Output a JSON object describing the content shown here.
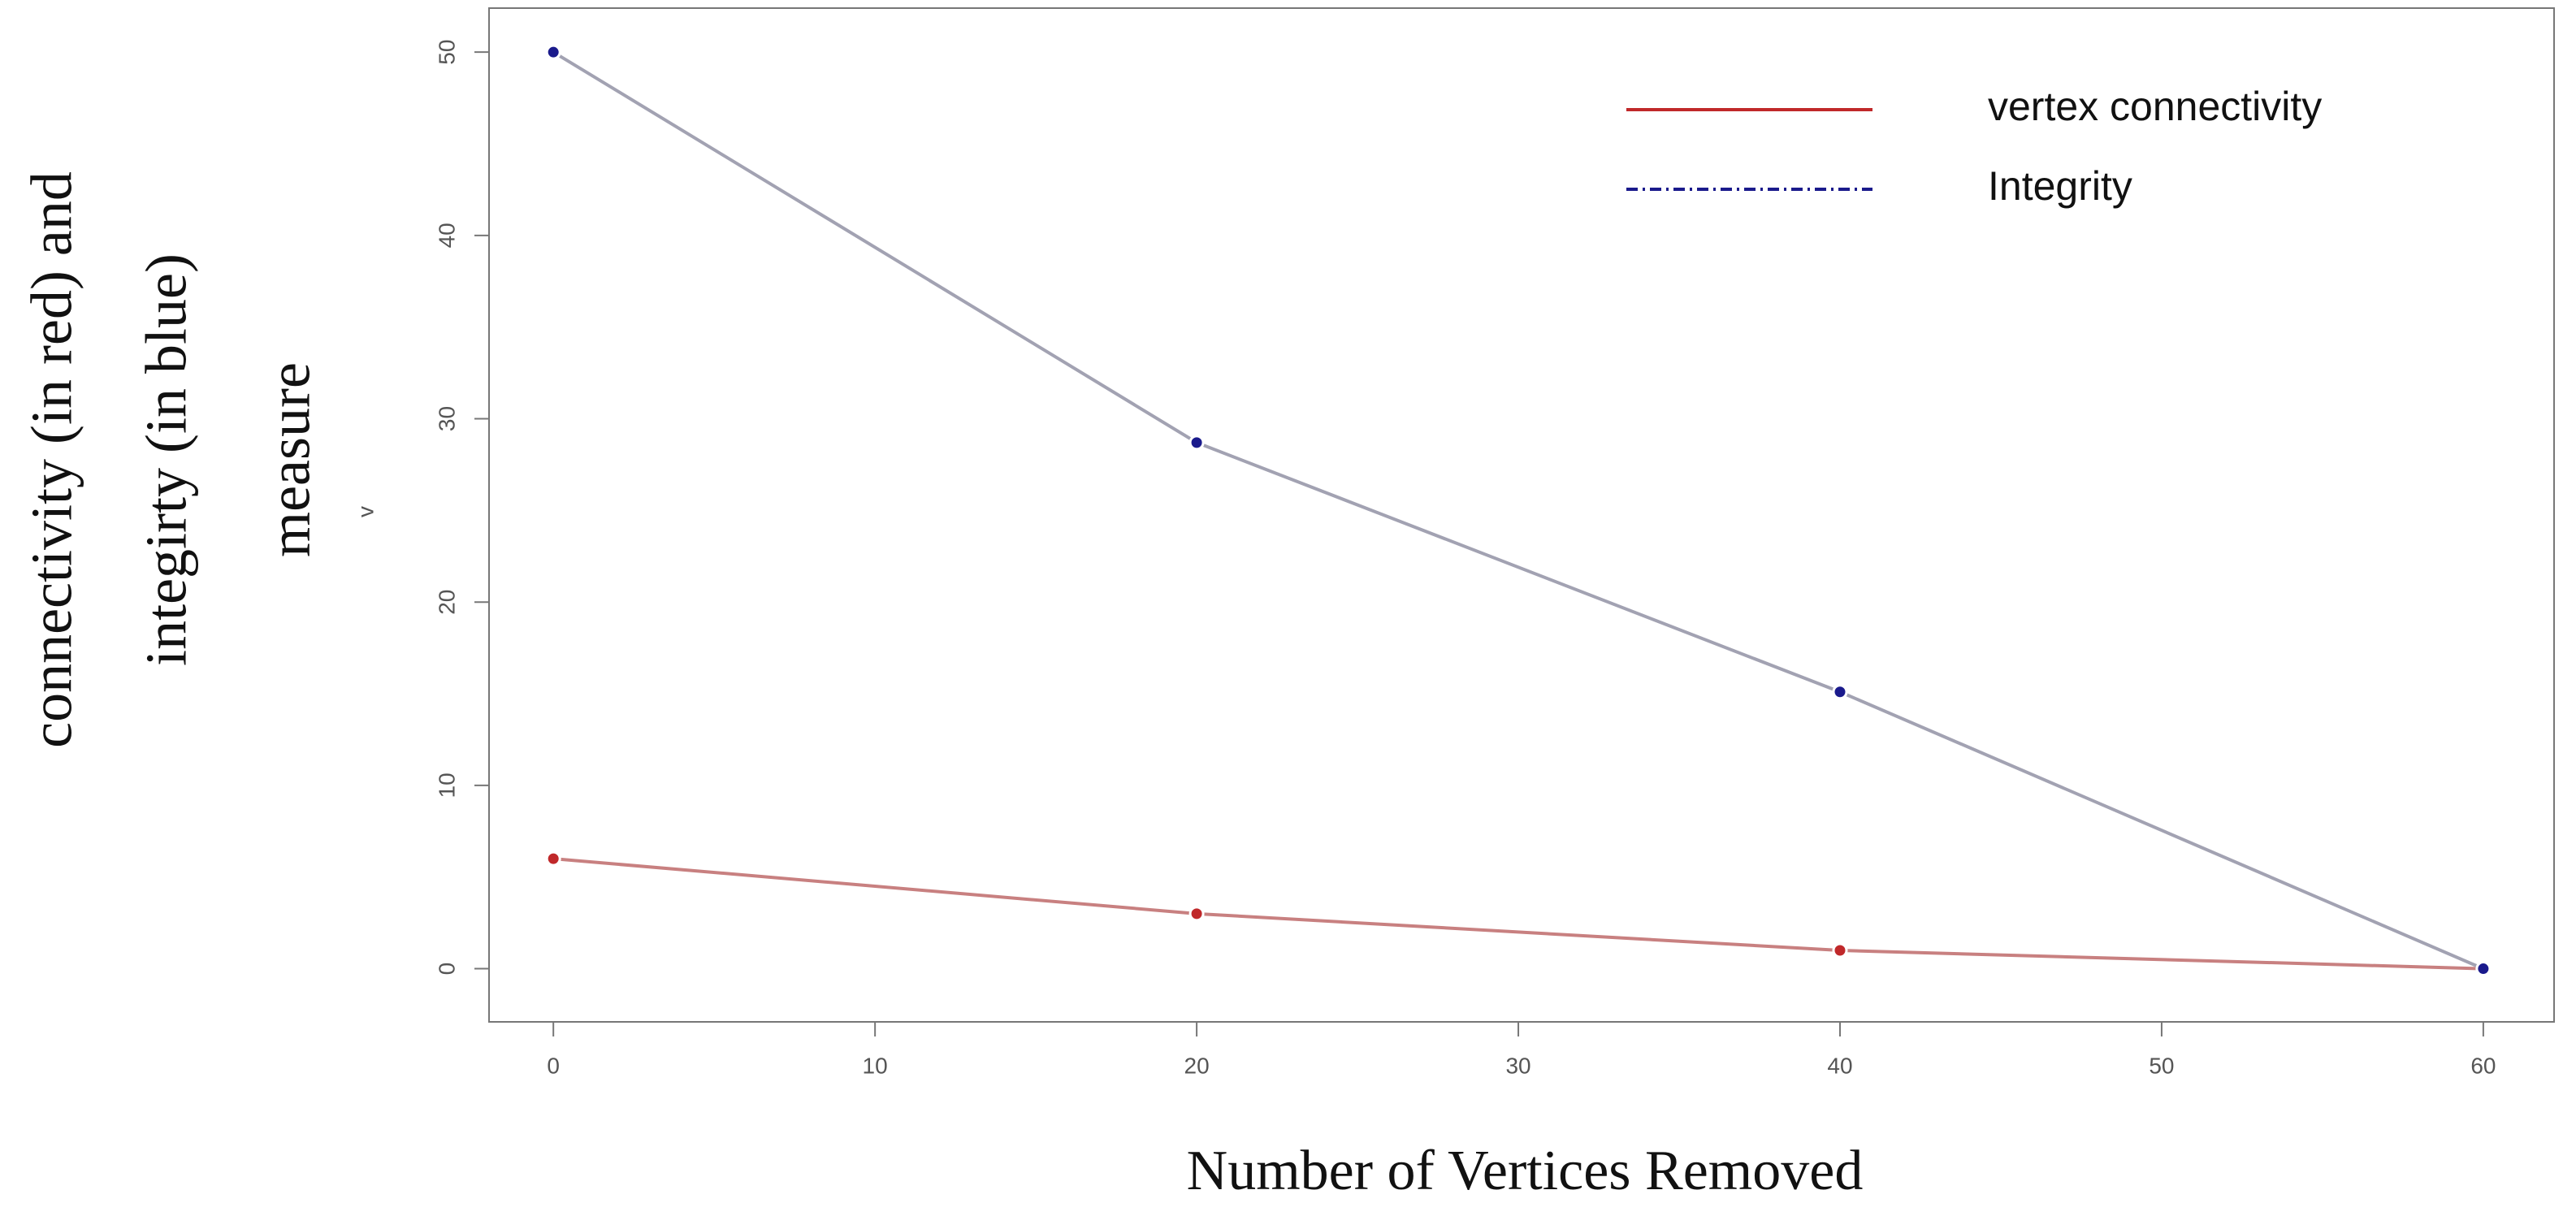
{
  "chart_data": {
    "type": "line",
    "x_label": "Number of Vertices Removed",
    "y_label_lines": [
      "connectivity (in red) and",
      "integirty (in blue)",
      "measure"
    ],
    "y_inner_label": "v",
    "x": [
      0,
      20,
      40,
      60
    ],
    "series": [
      {
        "name": "vertex connectivity",
        "color": "#c0282a",
        "line_color": "#c88080",
        "dash": "solid",
        "values": [
          6,
          3,
          1,
          0
        ]
      },
      {
        "name": "Integrity",
        "color": "#1a1a8c",
        "line_color": "#a2a2b2",
        "dash": "dashdot",
        "values": [
          50,
          28.7,
          15.1,
          0
        ]
      }
    ],
    "xlim": [
      -2,
      62.2
    ],
    "ylim": [
      -2.9,
      52.4
    ],
    "xticks": [
      0,
      10,
      20,
      30,
      40,
      50,
      60
    ],
    "yticks": [
      0,
      10,
      20,
      30,
      40,
      50
    ],
    "legend": "upper right"
  }
}
